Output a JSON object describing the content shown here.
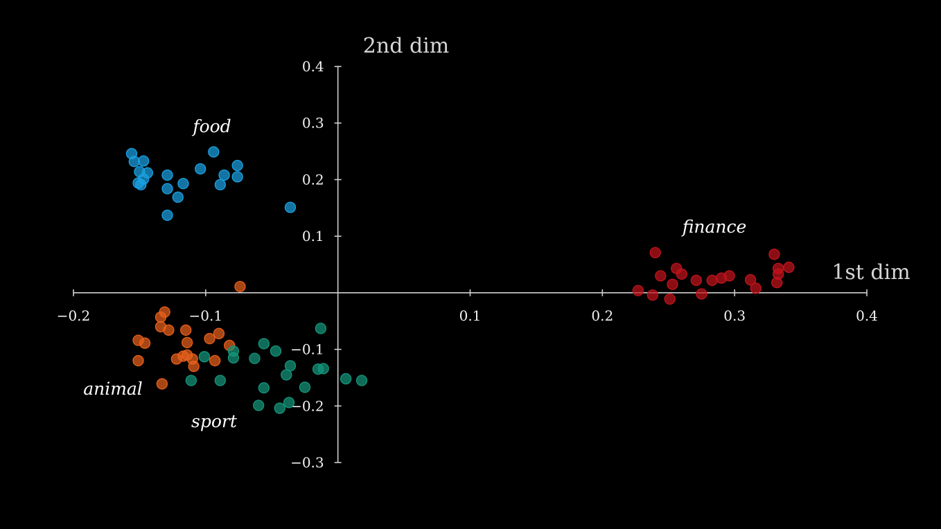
{
  "chart_data": {
    "type": "scatter",
    "xlabel": "1st dim",
    "ylabel": "2nd dim",
    "xlim": [
      -0.2,
      0.4
    ],
    "ylim": [
      -0.3,
      0.4
    ],
    "xticks": [
      {
        "value": -0.2,
        "label": "−0.2"
      },
      {
        "value": -0.1,
        "label": "−0.1"
      },
      {
        "value": 0.1,
        "label": "0.1"
      },
      {
        "value": 0.2,
        "label": "0.2"
      },
      {
        "value": 0.3,
        "label": "0.3"
      },
      {
        "value": 0.4,
        "label": "0.4"
      }
    ],
    "yticks": [
      {
        "value": 0.4,
        "label": "0.4"
      },
      {
        "value": 0.3,
        "label": "0.3"
      },
      {
        "value": 0.2,
        "label": "0.2"
      },
      {
        "value": 0.1,
        "label": "0.1"
      },
      {
        "value": -0.1,
        "label": "−0.1"
      },
      {
        "value": -0.2,
        "label": "−0.2"
      },
      {
        "value": -0.3,
        "label": "−0.3"
      }
    ],
    "grid": false,
    "series": [
      {
        "name": "food",
        "label": "food",
        "color": "#1ba1e2",
        "points": [
          [
            -0.156,
            0.246
          ],
          [
            -0.154,
            0.232
          ],
          [
            -0.147,
            0.233
          ],
          [
            -0.15,
            0.214
          ],
          [
            -0.144,
            0.212
          ],
          [
            -0.147,
            0.201
          ],
          [
            -0.151,
            0.194
          ],
          [
            -0.149,
            0.191
          ],
          [
            -0.129,
            0.208
          ],
          [
            -0.129,
            0.184
          ],
          [
            -0.117,
            0.193
          ],
          [
            -0.121,
            0.169
          ],
          [
            -0.129,
            0.137
          ],
          [
            -0.104,
            0.219
          ],
          [
            -0.094,
            0.249
          ],
          [
            -0.086,
            0.208
          ],
          [
            -0.089,
            0.191
          ],
          [
            -0.076,
            0.225
          ],
          [
            -0.076,
            0.205
          ],
          [
            -0.036,
            0.151
          ]
        ]
      },
      {
        "name": "finance",
        "label": "finance",
        "color": "#c0141c",
        "points": [
          [
            0.24,
            0.071
          ],
          [
            0.256,
            0.043
          ],
          [
            0.244,
            0.03
          ],
          [
            0.26,
            0.033
          ],
          [
            0.253,
            0.015
          ],
          [
            0.271,
            0.022
          ],
          [
            0.283,
            0.022
          ],
          [
            0.29,
            0.026
          ],
          [
            0.296,
            0.03
          ],
          [
            0.227,
            0.004
          ],
          [
            0.238,
            -0.004
          ],
          [
            0.251,
            -0.011
          ],
          [
            0.275,
            -0.002
          ],
          [
            0.312,
            0.023
          ],
          [
            0.316,
            0.008
          ],
          [
            0.33,
            0.068
          ],
          [
            0.333,
            0.043
          ],
          [
            0.341,
            0.045
          ],
          [
            0.333,
            0.033
          ],
          [
            0.332,
            0.018
          ]
        ]
      },
      {
        "name": "animal",
        "label": "animal",
        "color": "#e8601c",
        "points": [
          [
            -0.074,
            0.011
          ],
          [
            -0.131,
            -0.034
          ],
          [
            -0.134,
            -0.043
          ],
          [
            -0.134,
            -0.06
          ],
          [
            -0.128,
            -0.066
          ],
          [
            -0.115,
            -0.066
          ],
          [
            -0.114,
            -0.088
          ],
          [
            -0.151,
            -0.084
          ],
          [
            -0.146,
            -0.089
          ],
          [
            -0.151,
            -0.12
          ],
          [
            -0.122,
            -0.117
          ],
          [
            -0.117,
            -0.112
          ],
          [
            -0.114,
            -0.11
          ],
          [
            -0.11,
            -0.117
          ],
          [
            -0.109,
            -0.13
          ],
          [
            -0.097,
            -0.081
          ],
          [
            -0.09,
            -0.072
          ],
          [
            -0.082,
            -0.093
          ],
          [
            -0.093,
            -0.12
          ],
          [
            -0.133,
            -0.161
          ]
        ]
      },
      {
        "name": "sport",
        "label": "sport",
        "color": "#15957a",
        "points": [
          [
            -0.101,
            -0.113
          ],
          [
            -0.111,
            -0.155
          ],
          [
            -0.089,
            -0.155
          ],
          [
            -0.079,
            -0.103
          ],
          [
            -0.079,
            -0.115
          ],
          [
            -0.063,
            -0.116
          ],
          [
            -0.056,
            -0.09
          ],
          [
            -0.047,
            -0.103
          ],
          [
            -0.056,
            -0.168
          ],
          [
            -0.039,
            -0.145
          ],
          [
            -0.036,
            -0.129
          ],
          [
            -0.06,
            -0.199
          ],
          [
            -0.044,
            -0.204
          ],
          [
            -0.037,
            -0.194
          ],
          [
            -0.025,
            -0.167
          ],
          [
            -0.015,
            -0.135
          ],
          [
            -0.011,
            -0.134
          ],
          [
            -0.013,
            -0.063
          ],
          [
            0.006,
            -0.152
          ],
          [
            0.018,
            -0.155
          ]
        ]
      }
    ]
  }
}
